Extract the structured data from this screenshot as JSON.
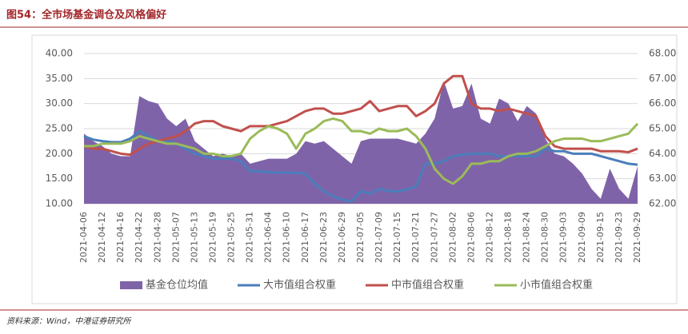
{
  "chart_data": {
    "type": "line",
    "title": "图54：全市场基金调仓及风格偏好",
    "source": "资料来源：Wind，中港证券研究所",
    "categories": [
      "2021-04-06",
      null,
      "2021-04-12",
      null,
      "2021-04-16",
      null,
      "2021-04-22",
      null,
      "2021-04-28",
      null,
      "2021-05-07",
      null,
      "2021-05-13",
      null,
      "2021-05-19",
      null,
      "2021-05-25",
      null,
      "2021-05-31",
      null,
      "2021-06-04",
      null,
      "2021-06-10",
      null,
      "2021-06-17",
      null,
      "2021-06-23",
      null,
      "2021-06-29",
      null,
      "2021-07-05",
      null,
      "2021-07-09",
      null,
      "2021-07-15",
      null,
      "2021-07-21",
      null,
      "2021-07-27",
      null,
      "2021-08-02",
      null,
      "2021-08-06",
      null,
      "2021-08-12",
      null,
      "2021-08-18",
      null,
      "2021-08-24",
      null,
      "2021-08-30",
      null,
      "2021-09-03",
      null,
      "2021-09-09",
      null,
      "2021-09-15",
      null,
      "2021-09-23",
      null,
      "2021-09-29"
    ],
    "series": [
      {
        "name": "基金仓位均值",
        "color": "#7f63a8",
        "kind": "area",
        "axis": "y2",
        "values": [
          64.8,
          64.5,
          64.3,
          64.0,
          63.9,
          63.9,
          66.3,
          66.1,
          66.0,
          65.4,
          65.1,
          65.4,
          64.5,
          64.2,
          63.9,
          64.0,
          63.9,
          64.0,
          63.6,
          63.7,
          63.8,
          63.8,
          63.8,
          64.0,
          64.5,
          64.4,
          64.5,
          64.2,
          63.9,
          63.6,
          64.5,
          64.6,
          64.6,
          64.6,
          64.6,
          64.5,
          64.4,
          64.8,
          65.4,
          66.9,
          65.8,
          65.9,
          66.8,
          65.4,
          65.2,
          66.2,
          66.0,
          65.3,
          65.9,
          65.6,
          64.6,
          64.0,
          63.9,
          63.6,
          63.2,
          62.6,
          62.2,
          63.4,
          62.6,
          62.2,
          63.5
        ]
      },
      {
        "name": "大市值组合权重",
        "color": "#4a7ebb",
        "values": [
          23.5,
          22.8,
          22.5,
          22.3,
          22.3,
          23,
          24.5,
          23.5,
          22.5,
          22.5,
          22,
          21,
          20,
          19.5,
          19,
          19,
          19,
          18.5,
          16.5,
          16.5,
          16.3,
          16.2,
          16.2,
          16.2,
          16,
          14,
          12.5,
          11.5,
          10.8,
          10.5,
          12.5,
          12,
          13,
          12.5,
          12.5,
          12.8,
          13.5,
          18,
          18,
          18.5,
          19.5,
          19.8,
          20,
          20,
          20,
          19.5,
          19.5,
          19.5,
          19.5,
          19.5,
          21,
          20.5,
          20.5,
          20,
          20,
          20,
          19.5,
          19,
          18.5,
          18,
          17.8
        ]
      },
      {
        "name": "中市值组合权重",
        "color": "#c0504d",
        "values": [
          21.5,
          21,
          21,
          20.5,
          20,
          19.8,
          21,
          22,
          22.5,
          23,
          23.5,
          24.5,
          26,
          26.5,
          26.5,
          25.5,
          25,
          24.5,
          25.5,
          25.5,
          25.5,
          26,
          26.5,
          27.5,
          28.5,
          29,
          29,
          28,
          28,
          28.5,
          29,
          30.5,
          28.5,
          29,
          29.5,
          29.5,
          27.5,
          28.5,
          30,
          34,
          35.5,
          35.5,
          30,
          29,
          29,
          28.5,
          29,
          28.5,
          28,
          27.5,
          23.5,
          21.5,
          21,
          21,
          21,
          21,
          20.5,
          20.5,
          20.5,
          20.3,
          21
        ]
      },
      {
        "name": "小市值组合权重",
        "color": "#9bbb59",
        "values": [
          21.5,
          21.5,
          22,
          22,
          22,
          22.5,
          23.5,
          23,
          22.5,
          22,
          22,
          21.5,
          21,
          20,
          20,
          19.5,
          19.5,
          20,
          23,
          24.5,
          25.5,
          25,
          24,
          21,
          24,
          25,
          26.5,
          27,
          26.5,
          24.5,
          24.5,
          24,
          25,
          24.5,
          24.5,
          25,
          23.5,
          21,
          17,
          15,
          14,
          15.5,
          18,
          18,
          18.5,
          18.5,
          19.5,
          20,
          20,
          20.5,
          21.5,
          22.5,
          23,
          23,
          23,
          22.5,
          22.5,
          23,
          23.5,
          24,
          26
        ]
      }
    ],
    "ylim": [
      10,
      40
    ],
    "yticks": [
      {
        "value": 10,
        "label": "10.00"
      },
      {
        "value": 15,
        "label": "15.00"
      },
      {
        "value": 20,
        "label": "20.00"
      },
      {
        "value": 25,
        "label": "25.00"
      },
      {
        "value": 30,
        "label": "30.00"
      },
      {
        "value": 35,
        "label": "35.00"
      },
      {
        "value": 40,
        "label": "40.00"
      }
    ],
    "y2lim": [
      62,
      68
    ],
    "y2ticks": [
      {
        "value": 62,
        "label": "62.00"
      },
      {
        "value": 63,
        "label": "63.00"
      },
      {
        "value": 64,
        "label": "64.00"
      },
      {
        "value": 65,
        "label": "65.00"
      },
      {
        "value": 66,
        "label": "66.00"
      },
      {
        "value": 67,
        "label": "67.00"
      },
      {
        "value": 68,
        "label": "68.00"
      }
    ],
    "grid": true,
    "legend": "bottom"
  }
}
